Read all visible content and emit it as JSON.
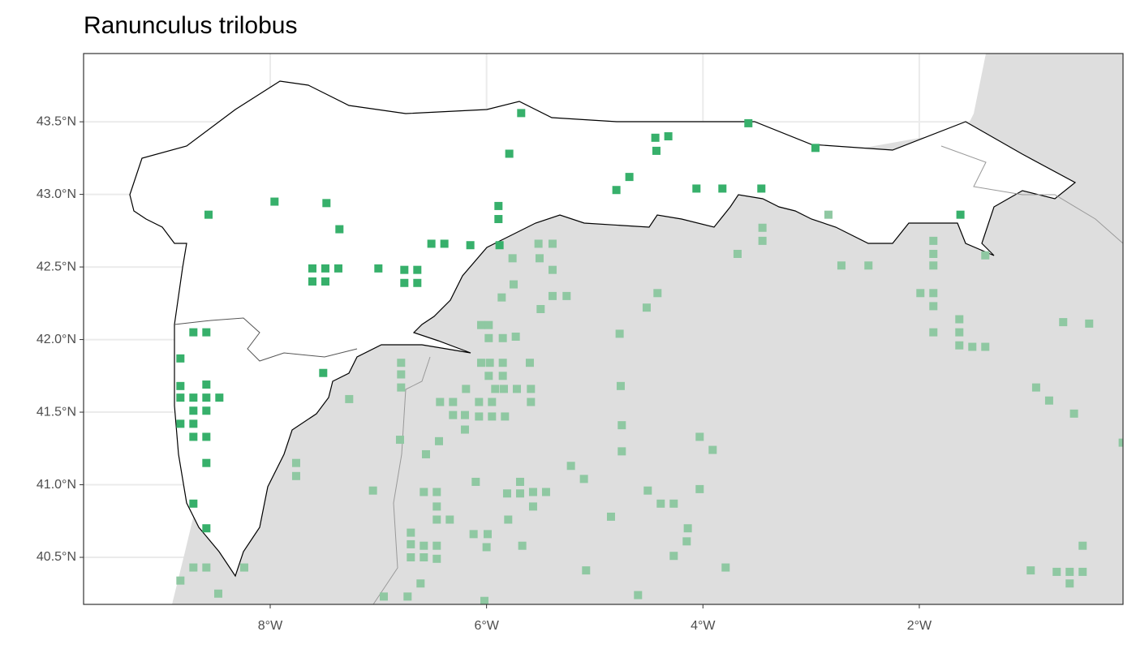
{
  "chart_data": {
    "type": "scatter",
    "title": "Ranunculus trilobus",
    "xlim": [
      -9.725,
      -0.117
    ],
    "ylim": [
      40.176,
      43.97
    ],
    "xticks": [
      {
        "value": -8,
        "label": "8°W"
      },
      {
        "value": -6,
        "label": "6°W"
      },
      {
        "value": -4,
        "label": "4°W"
      },
      {
        "value": -2,
        "label": "2°W"
      }
    ],
    "yticks": [
      {
        "value": 40.5,
        "label": "40.5°N"
      },
      {
        "value": 41.0,
        "label": "41.0°N"
      },
      {
        "value": 41.5,
        "label": "41.5°N"
      },
      {
        "value": 42.0,
        "label": "42.0°N"
      },
      {
        "value": 42.5,
        "label": "42.5°N"
      },
      {
        "value": 43.0,
        "label": "43.0°N"
      },
      {
        "value": 43.5,
        "label": "43.5°N"
      }
    ],
    "grid": true,
    "series": [
      {
        "color": "#8fc8a2",
        "x": [
          -5.52,
          -5.39,
          -5.51,
          -5.76,
          -5.39,
          -5.39,
          -5.26,
          -5.75,
          -5.86,
          -5.5,
          -4.52,
          -4.42,
          -3.68,
          -3.45,
          -3.45,
          -2.72,
          -2.47,
          -1.87,
          -1.87,
          -1.87,
          -1.99,
          -1.87,
          -1.87,
          -1.87,
          -1.63,
          -1.63,
          -1.63,
          -1.51,
          -1.39,
          -1.39,
          -0.67,
          -0.43,
          -0.92,
          -0.8,
          -0.57,
          -0.12,
          -0.49,
          -0.97,
          -0.73,
          -0.61,
          -0.49,
          -0.61,
          -6.05,
          -5.98,
          -5.98,
          -5.85,
          -5.73,
          -4.77,
          -6.05,
          -5.97,
          -5.85,
          -5.6,
          -5.98,
          -5.85,
          -5.92,
          -5.72,
          -5.59,
          -5.84,
          -5.59,
          -6.07,
          -5.95,
          -6.07,
          -5.95,
          -5.83,
          -4.76,
          -4.75,
          -4.75,
          -4.03,
          -3.91,
          -6.19,
          -6.31,
          -6.43,
          -6.31,
          -6.2,
          -6.2,
          -6.44,
          -6.56,
          -6.8,
          -6.79,
          -6.79,
          -6.79,
          -7.27,
          -7.76,
          -7.76,
          -7.05,
          -6.1,
          -5.69,
          -5.81,
          -5.69,
          -5.57,
          -5.45,
          -5.57,
          -5.8,
          -5.22,
          -5.1,
          -4.51,
          -4.39,
          -4.27,
          -4.03,
          -4.85,
          -4.14,
          -4.15,
          -4.27,
          -3.79,
          -5.08,
          -4.6,
          -6.58,
          -6.46,
          -6.46,
          -6.46,
          -6.34,
          -6.7,
          -6.7,
          -6.58,
          -6.46,
          -6.7,
          -6.58,
          -6.46,
          -6.12,
          -5.99,
          -6.0,
          -5.67,
          -6.61,
          -6.73,
          -6.95,
          -6.02,
          -8.24,
          -8.71,
          -8.59,
          -8.83,
          -8.48,
          -2.84
        ],
        "y": [
          42.66,
          42.66,
          42.56,
          42.56,
          42.48,
          42.3,
          42.3,
          42.38,
          42.29,
          42.21,
          42.22,
          42.32,
          42.59,
          42.77,
          42.68,
          42.51,
          42.51,
          42.68,
          42.59,
          42.51,
          42.32,
          42.32,
          42.23,
          42.05,
          42.14,
          42.05,
          41.96,
          41.95,
          41.95,
          42.58,
          42.12,
          42.11,
          41.67,
          41.58,
          41.49,
          41.29,
          40.58,
          40.41,
          40.4,
          40.4,
          40.4,
          40.32,
          42.1,
          42.1,
          42.01,
          42.01,
          42.02,
          42.04,
          41.84,
          41.84,
          41.84,
          41.84,
          41.75,
          41.75,
          41.66,
          41.66,
          41.66,
          41.66,
          41.57,
          41.57,
          41.57,
          41.47,
          41.47,
          41.47,
          41.68,
          41.41,
          41.23,
          41.33,
          41.24,
          41.66,
          41.48,
          41.57,
          41.57,
          41.48,
          41.38,
          41.3,
          41.21,
          41.31,
          41.84,
          41.76,
          41.67,
          41.59,
          41.15,
          41.06,
          40.96,
          41.02,
          41.02,
          40.94,
          40.94,
          40.95,
          40.95,
          40.85,
          40.76,
          41.13,
          41.04,
          40.96,
          40.87,
          40.87,
          40.97,
          40.78,
          40.7,
          40.61,
          40.51,
          40.43,
          40.41,
          40.24,
          40.95,
          40.95,
          40.85,
          40.76,
          40.76,
          40.67,
          40.59,
          40.58,
          40.58,
          40.5,
          40.5,
          40.49,
          40.66,
          40.66,
          40.57,
          40.58,
          40.32,
          40.23,
          40.23,
          40.2,
          40.43,
          40.43,
          40.43,
          40.34,
          40.25,
          42.86
        ]
      },
      {
        "color": "#37b06b",
        "x": [
          -5.68,
          -5.79,
          -4.44,
          -4.32,
          -4.43,
          -3.58,
          -2.96,
          -4.68,
          -4.8,
          -4.06,
          -3.82,
          -3.46,
          -1.62,
          -5.89,
          -5.89,
          -7.96,
          -7.48,
          -8.57,
          -7.36,
          -6.51,
          -6.39,
          -6.15,
          -5.88,
          -7.61,
          -7.49,
          -7.37,
          -7.0,
          -6.76,
          -6.64,
          -7.61,
          -7.49,
          -6.76,
          -6.64,
          -8.71,
          -8.59,
          -8.83,
          -7.51,
          -8.83,
          -8.59,
          -8.83,
          -8.71,
          -8.59,
          -8.47,
          -8.71,
          -8.59,
          -8.83,
          -8.71,
          -8.71,
          -8.59,
          -8.59,
          -8.71,
          -8.59
        ],
        "y": [
          43.56,
          43.28,
          43.39,
          43.4,
          43.3,
          43.49,
          43.32,
          43.12,
          43.03,
          43.04,
          43.04,
          43.04,
          42.86,
          42.92,
          42.83,
          42.95,
          42.94,
          42.86,
          42.76,
          42.66,
          42.66,
          42.65,
          42.65,
          42.49,
          42.49,
          42.49,
          42.49,
          42.48,
          42.48,
          42.4,
          42.4,
          42.39,
          42.39,
          42.05,
          42.05,
          41.87,
          41.77,
          41.68,
          41.69,
          41.6,
          41.6,
          41.6,
          41.6,
          41.51,
          41.51,
          41.42,
          41.42,
          41.33,
          41.33,
          41.15,
          40.87,
          40.7
        ]
      }
    ]
  }
}
